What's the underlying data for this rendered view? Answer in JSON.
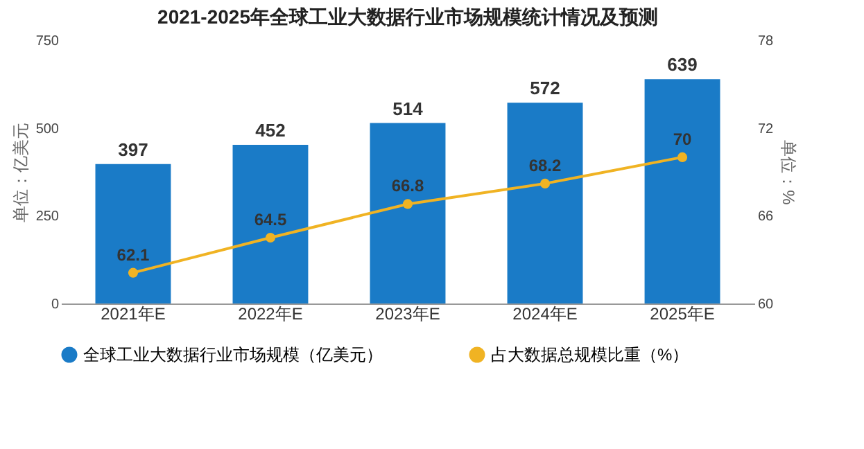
{
  "chart_data": {
    "type": "bar",
    "title": "2021-2025年全球工业大数据行业市场规模统计情况及预测",
    "ylabel": "单位：亿美元",
    "y2label": "单位：%",
    "categories": [
      "2021年E",
      "2022年E",
      "2023年E",
      "2024年E",
      "2025年E"
    ],
    "series": [
      {
        "name": "全球工业大数据行业市场规模（亿美元）",
        "color": "#1a7bc7",
        "values": [
          397,
          452,
          514,
          572,
          639
        ]
      },
      {
        "name": "占大数据总规模比重（%）",
        "type": "line",
        "axis": "y2",
        "color": "#f0b323",
        "values": [
          62.1,
          64.5,
          66.8,
          68.2,
          70
        ]
      }
    ],
    "ylim": [
      0,
      750
    ],
    "yticks": [
      0,
      250,
      500,
      750
    ],
    "y2lim": [
      60,
      78
    ],
    "y2ticks": [
      60,
      66,
      72,
      78
    ],
    "data_labels": true,
    "legend": "bottom",
    "marker": "circle",
    "line_style": "solid"
  }
}
